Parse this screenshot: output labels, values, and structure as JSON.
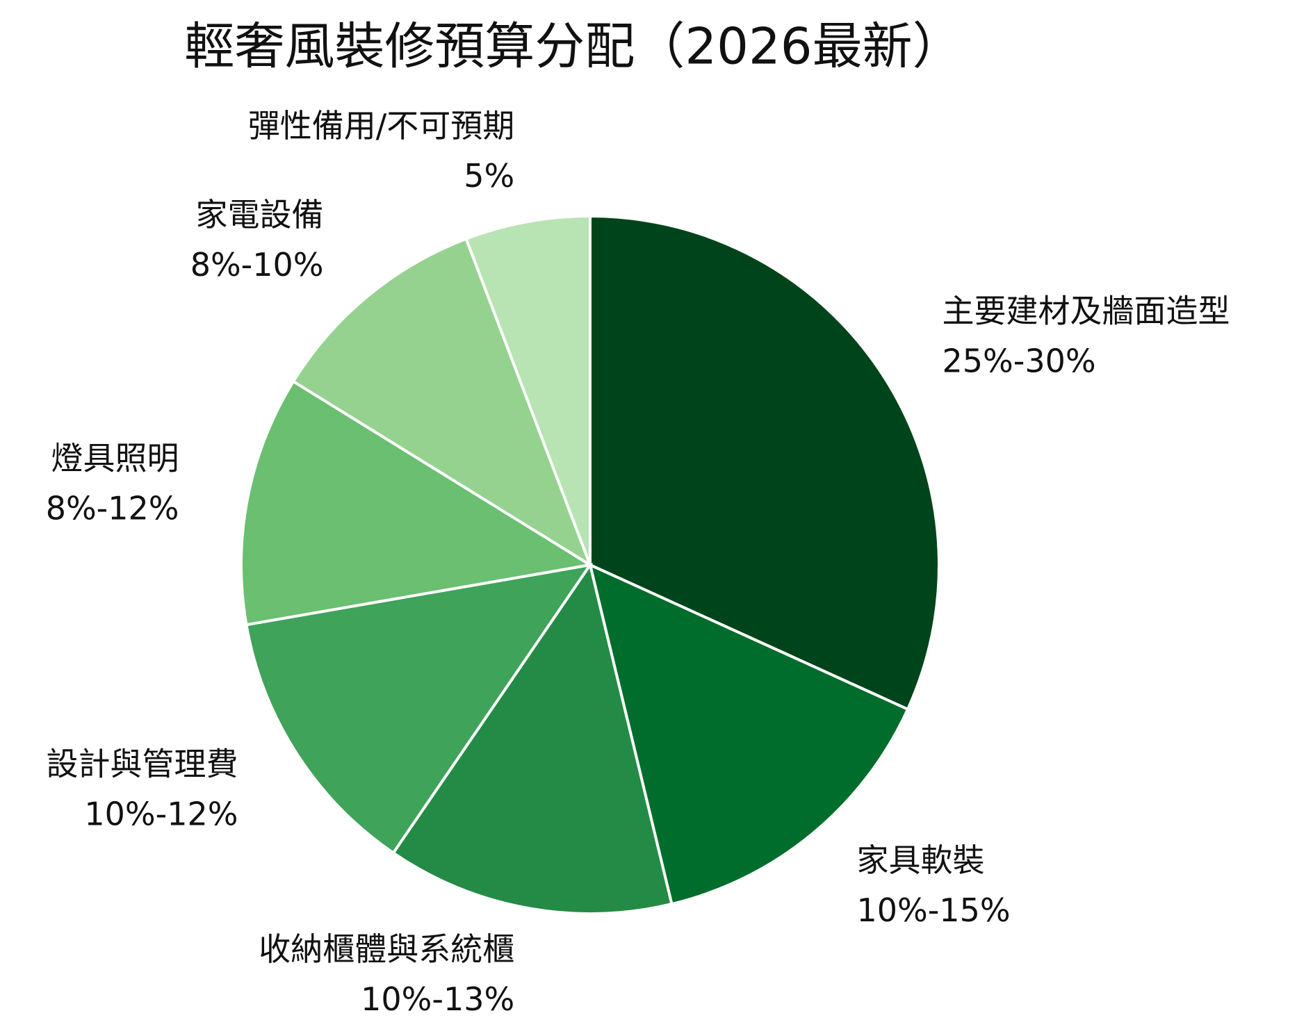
{
  "chart_data": {
    "type": "pie",
    "title": "輕奢風裝修預算分配（2026最新）",
    "categories": [
      "主要建材及牆面造型",
      "家具軟裝",
      "收納櫃體與系統櫃",
      "設計與管理費",
      "燈具照明",
      "家電設備",
      "彈性備用/不可預期"
    ],
    "values": [
      27.5,
      12.5,
      11.5,
      11,
      10,
      9,
      5
    ],
    "value_labels": [
      "25%-30%",
      "10%-15%",
      "10%-13%",
      "10%-12%",
      "8%-12%",
      "8%-10%",
      "5%"
    ],
    "colors": [
      "#00441b",
      "#006d2c",
      "#238b45",
      "#3fa35a",
      "#6abf71",
      "#95d290",
      "#b8e3b2"
    ],
    "start_angle": 90,
    "direction": "clockwise"
  }
}
